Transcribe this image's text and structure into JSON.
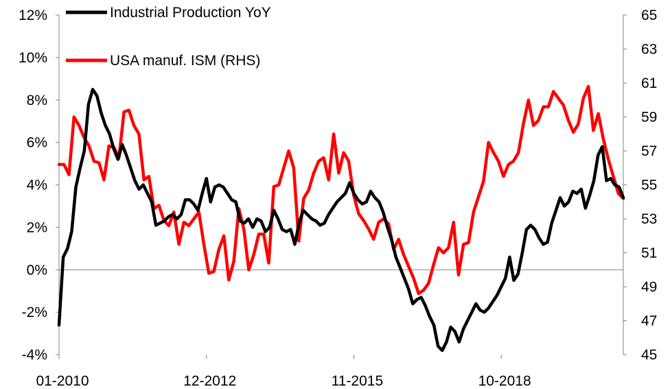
{
  "chart_data": {
    "type": "line",
    "x_ticks": [
      "01-2010",
      "12-2012",
      "11-2015",
      "10-2018"
    ],
    "x_range": [
      "01-2010",
      "12-2018"
    ],
    "y_left": {
      "min": -4,
      "max": 12,
      "ticks": [
        "-4%",
        "-2%",
        "0%",
        "2%",
        "4%",
        "6%",
        "8%",
        "10%",
        "12%"
      ]
    },
    "y_right": {
      "min": 45,
      "max": 65,
      "ticks": [
        "45",
        "47",
        "49",
        "51",
        "53",
        "55",
        "57",
        "59",
        "61",
        "63",
        "65"
      ]
    },
    "zero_line": true,
    "grid": false,
    "legend_position": "top-left",
    "series": [
      {
        "name": "Industrial Production YoY",
        "axis": "left",
        "color": "#000000",
        "values": [
          -2.6,
          0.6,
          1.0,
          1.8,
          3.9,
          4.8,
          5.6,
          7.8,
          8.5,
          8.2,
          7.4,
          6.8,
          6.4,
          5.7,
          5.2,
          5.9,
          5.4,
          4.8,
          4.2,
          3.8,
          4.0,
          3.6,
          3.2,
          2.1,
          2.2,
          2.3,
          2.5,
          2.6,
          2.4,
          2.6,
          3.3,
          3.3,
          3.1,
          2.8,
          3.6,
          4.3,
          3.2,
          3.9,
          4.0,
          3.9,
          3.6,
          3.3,
          3.2,
          2.3,
          2.2,
          2.4,
          2.0,
          2.4,
          2.3,
          1.8,
          2.0,
          2.8,
          2.4,
          1.9,
          1.8,
          1.9,
          1.2,
          2.2,
          2.8,
          2.6,
          2.4,
          2.3,
          2.1,
          2.2,
          2.6,
          2.9,
          3.2,
          3.4,
          3.6,
          4.1,
          3.6,
          3.3,
          3.1,
          3.2,
          3.7,
          3.4,
          3.2,
          2.7,
          2.0,
          1.4,
          0.6,
          0.1,
          -0.4,
          -0.9,
          -1.6,
          -1.4,
          -1.3,
          -1.7,
          -2.2,
          -2.6,
          -3.6,
          -3.8,
          -3.4,
          -2.7,
          -2.9,
          -3.4,
          -2.8,
          -2.4,
          -2.0,
          -1.6,
          -1.9,
          -2.0,
          -1.8,
          -1.5,
          -1.2,
          -0.8,
          -0.4,
          0.6,
          -0.5,
          -0.2,
          0.8,
          1.9,
          2.1,
          1.9,
          1.5,
          1.2,
          1.3,
          2.2,
          2.8,
          3.4,
          3.0,
          3.2,
          3.7,
          3.6,
          3.8,
          2.9,
          3.5,
          4.2,
          5.4,
          5.8,
          4.2,
          4.3,
          4.0,
          3.9,
          3.4
        ]
      },
      {
        "name": "USA manuf. ISM (RHS)",
        "axis": "right",
        "color": "#ff0000",
        "values": [
          56.2,
          56.2,
          55.6,
          59.0,
          58.5,
          57.8,
          57.3,
          56.4,
          56.3,
          55.3,
          57.3,
          57.2,
          56.6,
          59.3,
          59.4,
          58.5,
          58.0,
          55.3,
          55.5,
          53.6,
          53.8,
          52.9,
          52.6,
          53.4,
          51.5,
          52.8,
          52.6,
          53.0,
          53.4,
          51.5,
          49.8,
          49.9,
          51.2,
          52.0,
          49.4,
          50.5,
          53.6,
          52.4,
          50.0,
          50.9,
          52.1,
          52.1,
          50.4,
          54.9,
          55.0,
          56.0,
          57.0,
          56.0,
          51.7,
          54.2,
          54.7,
          55.7,
          56.4,
          56.6,
          55.3,
          58.0,
          55.7,
          56.9,
          56.4,
          54.4,
          53.3,
          52.9,
          52.4,
          51.8,
          52.8,
          53.0,
          52.7,
          51.2,
          51.8,
          50.9,
          50.2,
          49.5,
          48.6,
          48.8,
          49.2,
          50.3,
          51.3,
          51.0,
          51.3,
          52.8,
          49.7,
          51.5,
          51.6,
          53.4,
          54.3,
          55.2,
          57.5,
          56.9,
          56.4,
          55.5,
          56.2,
          56.4,
          56.9,
          58.6,
          60.0,
          58.5,
          58.8,
          59.6,
          59.6,
          60.5,
          60.1,
          59.7,
          58.8,
          58.1,
          58.6,
          60.1,
          60.8,
          58.2,
          59.2,
          57.7,
          56.5,
          55.5,
          54.5,
          54.2
        ]
      }
    ]
  }
}
